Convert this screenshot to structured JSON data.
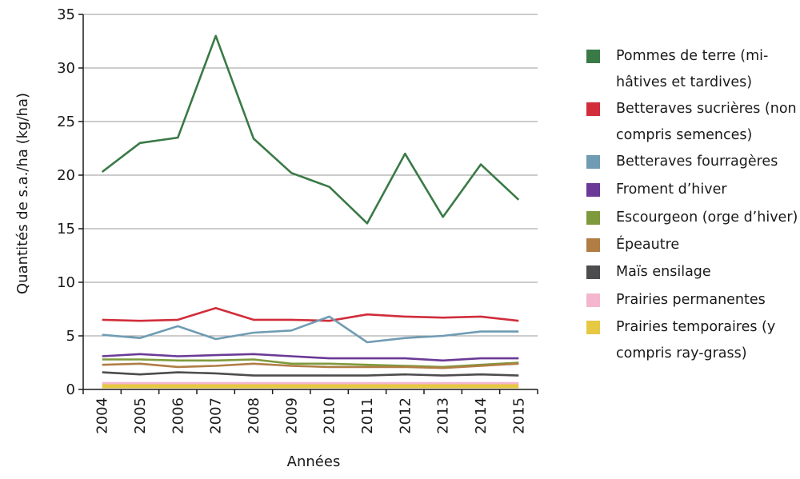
{
  "chart_data": {
    "type": "line",
    "x": [
      "2004",
      "2005",
      "2006",
      "2007",
      "2008",
      "2009",
      "2010",
      "2011",
      "2012",
      "2013",
      "2014",
      "2015"
    ],
    "xlabel": "Années",
    "ylabel": "Quantités de s.a./ha (kg/ha)",
    "ylim": [
      0,
      35
    ],
    "yticks": [
      0,
      5,
      10,
      15,
      20,
      25,
      30,
      35
    ],
    "grid": "horizontal",
    "legend_position": "right",
    "series": [
      {
        "name": "Pommes de terre (mi-hâtives et tardives)",
        "color": "#3a7a47",
        "values": [
          20.3,
          23.0,
          23.5,
          33.0,
          23.4,
          20.2,
          18.9,
          15.5,
          22.0,
          16.1,
          21.0,
          17.7
        ]
      },
      {
        "name": "Betteraves sucrières (non compris semences)",
        "color": "#d12d3a",
        "values": [
          6.5,
          6.4,
          6.5,
          7.6,
          6.5,
          6.5,
          6.4,
          7.0,
          6.8,
          6.7,
          6.8,
          6.4
        ]
      },
      {
        "name": "Betteraves fourragères",
        "color": "#6f9cb3",
        "values": [
          5.1,
          4.8,
          5.9,
          4.7,
          5.3,
          5.5,
          6.8,
          4.4,
          4.8,
          5.0,
          5.4,
          5.4
        ]
      },
      {
        "name": "Froment d’hiver",
        "color": "#6b3a96",
        "values": [
          3.1,
          3.3,
          3.1,
          3.2,
          3.3,
          3.1,
          2.9,
          2.9,
          2.9,
          2.7,
          2.9,
          2.9
        ]
      },
      {
        "name": "Escourgeon (orge d’hiver)",
        "color": "#7e9a3c",
        "values": [
          2.8,
          2.8,
          2.7,
          2.7,
          2.8,
          2.4,
          2.4,
          2.3,
          2.2,
          2.1,
          2.3,
          2.5
        ]
      },
      {
        "name": "Épeautre",
        "color": "#b07d45",
        "values": [
          2.3,
          2.4,
          2.1,
          2.2,
          2.4,
          2.2,
          2.1,
          2.1,
          2.1,
          2.0,
          2.2,
          2.4
        ]
      },
      {
        "name": "Maïs ensilage",
        "color": "#4d4d4f",
        "values": [
          1.6,
          1.4,
          1.6,
          1.5,
          1.3,
          1.3,
          1.3,
          1.3,
          1.4,
          1.3,
          1.4,
          1.3
        ]
      },
      {
        "name": "Prairies permanentes",
        "color": "#f4b6cf",
        "values": [
          0.5,
          0.5,
          0.5,
          0.5,
          0.5,
          0.5,
          0.5,
          0.5,
          0.5,
          0.5,
          0.5,
          0.5
        ]
      },
      {
        "name": "Prairies temporaires (y compris ray-grass)",
        "color": "#e6c843",
        "values": [
          0.3,
          0.3,
          0.3,
          0.3,
          0.3,
          0.3,
          0.3,
          0.3,
          0.3,
          0.3,
          0.3,
          0.3
        ]
      }
    ]
  },
  "legend": [
    {
      "label": "Pommes de terre (mi-hâtives et tardives)",
      "color": "#3a7a47"
    },
    {
      "label": "Betteraves sucrières (non compris semences)",
      "color": "#d12d3a"
    },
    {
      "label": "Betteraves fourragères",
      "color": "#6f9cb3"
    },
    {
      "label": "Froment d’hiver",
      "color": "#6b3a96"
    },
    {
      "label": "Escourgeon (orge d’hiver)",
      "color": "#7e9a3c"
    },
    {
      "label": "Épeautre",
      "color": "#b07d45"
    },
    {
      "label": "Maïs ensilage",
      "color": "#4d4d4f"
    },
    {
      "label": "Prairies permanentes",
      "color": "#f4b6cf"
    },
    {
      "label": "Prairies temporaires (y compris ray-grass)",
      "color": "#e6c843"
    }
  ]
}
